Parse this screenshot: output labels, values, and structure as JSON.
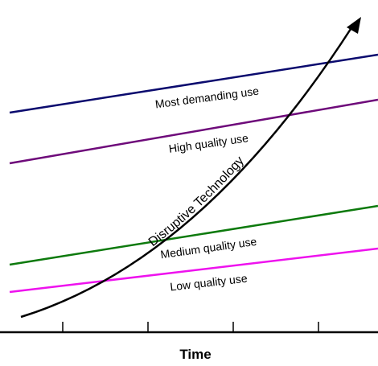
{
  "diagram": {
    "x_axis_label": "Time",
    "curve_label": "Disruptive Technology",
    "curve_color": "#000000",
    "tiers": [
      {
        "id": "most-demanding",
        "label": "Most demanding use",
        "color": "#0a0a6e"
      },
      {
        "id": "high-quality",
        "label": "High quality use",
        "color": "#6e0a7a"
      },
      {
        "id": "medium-quality",
        "label": "Medium quality use",
        "color": "#0d7a0d"
      },
      {
        "id": "low-quality",
        "label": "Low quality use",
        "color": "#ee12ee"
      }
    ]
  }
}
